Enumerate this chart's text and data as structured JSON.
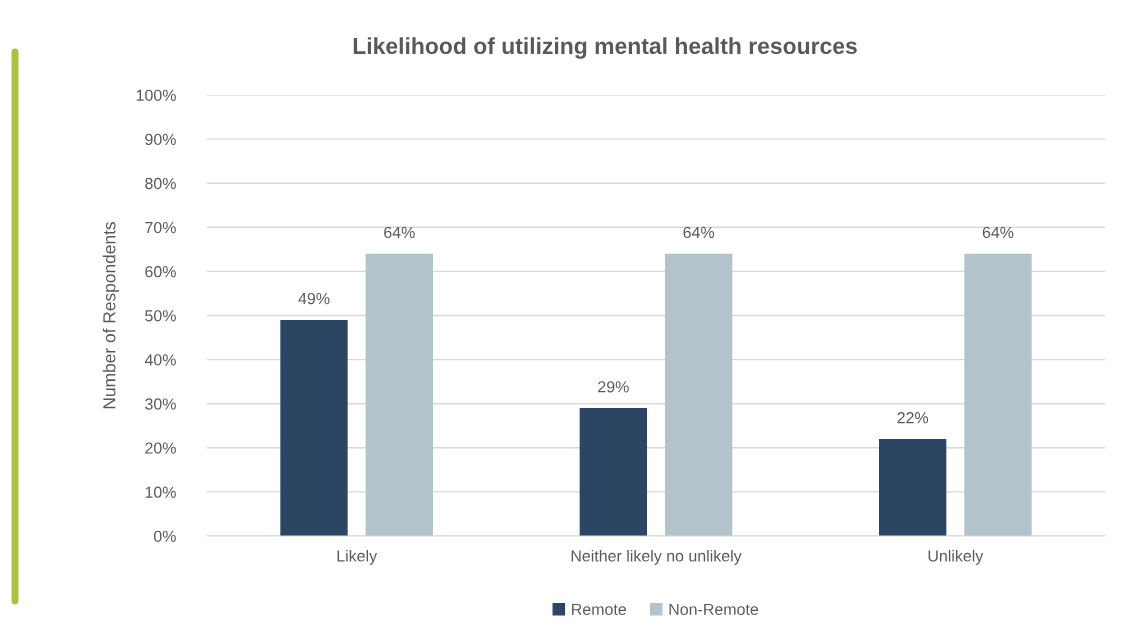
{
  "chart_data": {
    "type": "bar",
    "title": "Likelihood of utilizing mental health resources",
    "ylabel": "Number of Respondents",
    "categories": [
      "Likely",
      "Neither likely no unlikely",
      "Unlikely"
    ],
    "series": [
      {
        "name": "Remote",
        "color": "#2c4563",
        "values": [
          49,
          29,
          22
        ],
        "value_labels": [
          "49%",
          "29%",
          "22%"
        ]
      },
      {
        "name": "Non-Remote",
        "color": "#b2c3cc",
        "values": [
          64,
          64,
          64
        ],
        "value_labels": [
          "64%",
          "64%",
          "64%"
        ]
      }
    ],
    "ylim": [
      0,
      100
    ],
    "yticks": [
      {
        "value": 0,
        "label": "0%"
      },
      {
        "value": 10,
        "label": "10%"
      },
      {
        "value": 20,
        "label": "20%"
      },
      {
        "value": 30,
        "label": "30%"
      },
      {
        "value": 40,
        "label": "40%"
      },
      {
        "value": 50,
        "label": "50%"
      },
      {
        "value": 60,
        "label": "60%"
      },
      {
        "value": 70,
        "label": "70%"
      },
      {
        "value": 80,
        "label": "80%"
      },
      {
        "value": 90,
        "label": "90%"
      },
      {
        "value": 100,
        "label": "100%"
      }
    ],
    "grid": "y",
    "legend": "bottom"
  }
}
